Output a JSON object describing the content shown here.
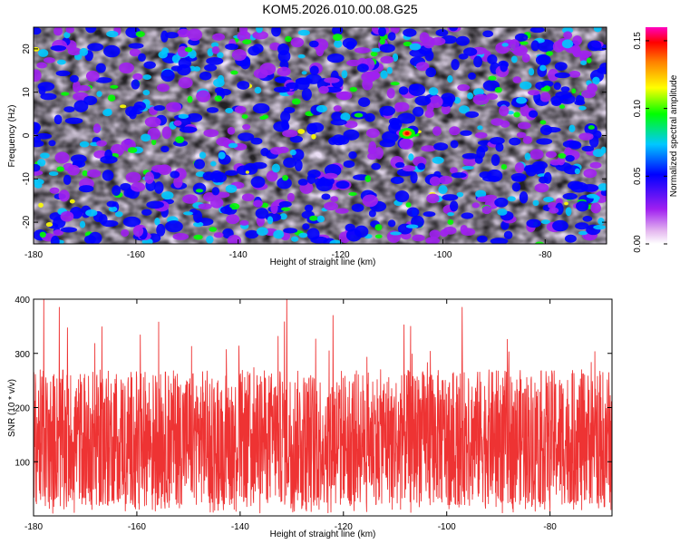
{
  "title": "KOM5.2026.010.00.08.G25",
  "chart_data": [
    {
      "type": "heatmap",
      "xlabel": "Height of straight line (km)",
      "ylabel": "Frequency (Hz)",
      "xlim": [
        -180,
        -68
      ],
      "ylim": [
        -25,
        25
      ],
      "xticks": [
        -180,
        -160,
        -140,
        -120,
        -100,
        -80
      ],
      "yticks": [
        -20,
        -10,
        0,
        10,
        20
      ],
      "colorbar": {
        "label": "Normalized spectral amplitude",
        "range": [
          0,
          0.16
        ],
        "ticks": [
          "0.00",
          "0.05",
          "0.10",
          "0.15"
        ],
        "colormap": [
          "#ffffff",
          "#e4b7ef",
          "#a020f0",
          "#0000ff",
          "#00c8ff",
          "#00ff00",
          "#ffff00",
          "#ff8000",
          "#ff0000",
          "#ff00c0"
        ]
      },
      "peak": {
        "x": -107,
        "y": 0.5,
        "value": 0.16
      }
    },
    {
      "type": "line",
      "xlabel": "Height of straight line (km)",
      "ylabel": "SNR (10 * v/v)",
      "xlim": [
        -180,
        -68
      ],
      "ylim": [
        0,
        400
      ],
      "xticks": [
        -180,
        -160,
        -140,
        -120,
        -100,
        -80
      ],
      "yticks": [
        100,
        200,
        300,
        400
      ],
      "series": [
        {
          "name": "SNR",
          "color": "#ee3333",
          "typical_range": [
            20,
            270
          ],
          "peaks": [
            [
              -178,
              400
            ],
            [
              -175,
              385
            ],
            [
              -131,
              400
            ],
            [
              -122,
              370
            ],
            [
              -97,
              385
            ],
            [
              -107,
              350
            ]
          ]
        }
      ]
    }
  ]
}
